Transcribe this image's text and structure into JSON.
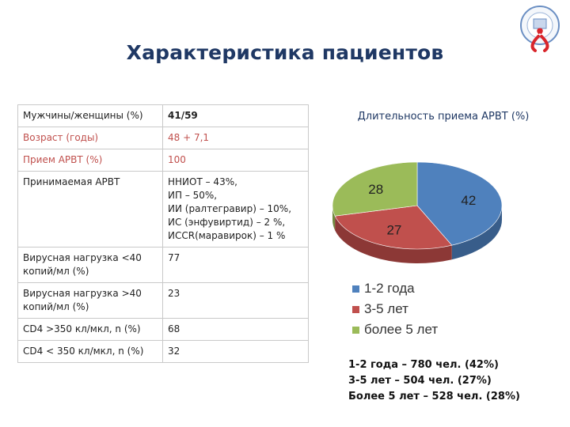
{
  "title": "Характеристика пациентов",
  "table": {
    "rows": [
      {
        "label": "Мужчины/женщины (%)",
        "value": [
          "41/59"
        ],
        "highlight": false
      },
      {
        "label": "Возраст (годы)",
        "value": [
          "48 + 7,1"
        ],
        "highlight": true
      },
      {
        "label": "Прием АРВТ (%)",
        "value": [
          "100"
        ],
        "highlight": true
      },
      {
        "label": "Принимаемая АРВТ",
        "value": [
          "ННИОТ – 43%,",
          "ИП – 50%,",
          "ИИ (ралтегравир) – 10%,",
          "ИС (энфувиртид) – 2 %,",
          "ИССR(маравирок) – 1 %"
        ],
        "highlight": false
      },
      {
        "label": "Вирусная нагрузка <40 копий/мл (%)",
        "value": [
          "77"
        ],
        "highlight": false
      },
      {
        "label": "Вирусная нагрузка >40 копий/мл (%)",
        "value": [
          "23"
        ],
        "highlight": false
      },
      {
        "label": "CD4 >350 кл/мкл, n (%)",
        "value": [
          "68"
        ],
        "highlight": false
      },
      {
        "label": "CD4 < 350 кл/мкл, n (%)",
        "value": [
          "32"
        ],
        "highlight": false
      }
    ]
  },
  "chart_data": {
    "type": "pie",
    "title": "Длительность приема АРВТ (%)",
    "categories": [
      "1-2 года",
      "3-5 лет",
      "более 5 лет"
    ],
    "values": [
      42,
      27,
      28
    ],
    "colors": [
      "#4f81bd",
      "#c0504d",
      "#9bbb59"
    ],
    "legend": "bottom"
  },
  "summary": [
    "1-2 года – 780 чел. (42%)",
    "3-5 лет – 504 чел. (27%)",
    "Более 5 лет – 528 чел. (28%)"
  ]
}
